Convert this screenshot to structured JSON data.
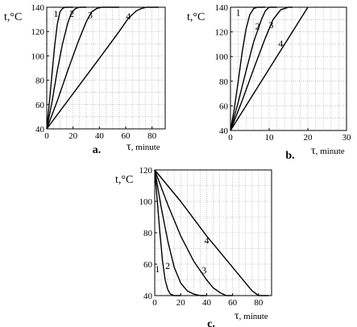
{
  "figure": {
    "panels": [
      {
        "id": "a",
        "caption": "a.",
        "chart_data": {
          "type": "line",
          "title": "",
          "ylabel_symbol": "t,",
          "ylabel_unit": "°C",
          "xlabel_symbol": "τ",
          "xlabel_unit": ", minute",
          "xlim": [
            0,
            90
          ],
          "ylim": [
            40,
            140
          ],
          "xticks": [
            0,
            20,
            40,
            60,
            80
          ],
          "yticks": [
            40,
            60,
            80,
            100,
            120,
            140
          ],
          "grid": true,
          "series": [
            {
              "name": "1",
              "label_at": [
                7,
                132
              ],
              "points": [
                [
                  0,
                  40
                ],
                [
                  2,
                  62
                ],
                [
                  4,
                  85
                ],
                [
                  6,
                  108
                ],
                [
                  8,
                  126
                ],
                [
                  10,
                  136
                ],
                [
                  12,
                  139
                ],
                [
                  14,
                  140
                ],
                [
                  20,
                  140
                ]
              ]
            },
            {
              "name": "2",
              "label_at": [
                19,
                132
              ],
              "points": [
                [
                  0,
                  40
                ],
                [
                  4,
                  62
                ],
                [
                  8,
                  88
                ],
                [
                  12,
                  110
                ],
                [
                  16,
                  127
                ],
                [
                  19,
                  136
                ],
                [
                  22,
                  139
                ],
                [
                  25,
                  140
                ],
                [
                  30,
                  140
                ]
              ]
            },
            {
              "name": "3",
              "label_at": [
                33,
                131
              ],
              "points": [
                [
                  0,
                  40
                ],
                [
                  8,
                  63
                ],
                [
                  16,
                  88
                ],
                [
                  24,
                  112
                ],
                [
                  30,
                  128
                ],
                [
                  34,
                  136
                ],
                [
                  38,
                  139
                ],
                [
                  42,
                  140
                ],
                [
                  55,
                  140
                ]
              ]
            },
            {
              "name": "4",
              "label_at": [
                62,
                130
              ],
              "points": [
                [
                  0,
                  40
                ],
                [
                  20,
                  69
                ],
                [
                  40,
                  98
                ],
                [
                  55,
                  120
                ],
                [
                  62,
                  131
                ],
                [
                  68,
                  137
                ],
                [
                  72,
                  139
                ],
                [
                  76,
                  140
                ],
                [
                  85,
                  140
                ]
              ]
            }
          ]
        }
      },
      {
        "id": "b",
        "caption": "b.",
        "chart_data": {
          "type": "line",
          "title": "",
          "ylabel_symbol": "t,",
          "ylabel_unit": "°C",
          "xlabel_symbol": "τ",
          "xlabel_unit": ", minute",
          "xlim": [
            0,
            30
          ],
          "ylim": [
            40,
            140
          ],
          "xticks": [
            0,
            10,
            20,
            30
          ],
          "yticks": [
            40,
            60,
            80,
            100,
            120,
            140
          ],
          "grid": true,
          "series": [
            {
              "name": "1",
              "label_at": [
                2,
                133
              ],
              "points": [
                [
                  0,
                  40
                ],
                [
                  1,
                  58
                ],
                [
                  2,
                  80
                ],
                [
                  3,
                  103
                ],
                [
                  4,
                  122
                ],
                [
                  5,
                  134
                ],
                [
                  6,
                  139
                ],
                [
                  7,
                  140
                ],
                [
                  9,
                  140
                ]
              ]
            },
            {
              "name": "2",
              "label_at": [
                7,
                122
              ],
              "points": [
                [
                  0,
                  40
                ],
                [
                  2,
                  63
                ],
                [
                  4,
                  88
                ],
                [
                  6,
                  112
                ],
                [
                  8,
                  130
                ],
                [
                  9,
                  137
                ],
                [
                  10,
                  140
                ],
                [
                  12,
                  140
                ]
              ]
            },
            {
              "name": "3",
              "label_at": [
                10.5,
                123
              ],
              "points": [
                [
                  0,
                  40
                ],
                [
                  3,
                  64
                ],
                [
                  6,
                  90
                ],
                [
                  9,
                  115
                ],
                [
                  11,
                  130
                ],
                [
                  13,
                  138
                ],
                [
                  15,
                  140
                ],
                [
                  16,
                  140
                ]
              ]
            },
            {
              "name": "4",
              "label_at": [
                13,
                108
              ],
              "points": [
                [
                  0,
                  40
                ],
                [
                  5,
                  65
                ],
                [
                  10,
                  90
                ],
                [
                  15,
                  115
                ],
                [
                  20,
                  140
                ]
              ]
            }
          ]
        }
      },
      {
        "id": "c",
        "caption": "c.",
        "chart_data": {
          "type": "line",
          "title": "",
          "ylabel_symbol": "t,",
          "ylabel_unit": "°C",
          "xlabel_symbol": "τ",
          "xlabel_unit": ", minute",
          "xlim": [
            0,
            90
          ],
          "ylim": [
            40,
            120
          ],
          "xticks": [
            0,
            20,
            40,
            60,
            80
          ],
          "yticks": [
            40,
            60,
            80,
            100,
            120
          ],
          "grid": true,
          "series": [
            {
              "name": "1",
              "label_at": [
                2,
                55
              ],
              "points": [
                [
                  0,
                  120
                ],
                [
                  2,
                  100
                ],
                [
                  4,
                  80
                ],
                [
                  6,
                  62
                ],
                [
                  8,
                  50
                ],
                [
                  10,
                  44
                ],
                [
                  12,
                  41
                ],
                [
                  15,
                  40
                ],
                [
                  20,
                  40
                ]
              ]
            },
            {
              "name": "2",
              "label_at": [
                10,
                57
              ],
              "points": [
                [
                  0,
                  120
                ],
                [
                  5,
                  96
                ],
                [
                  10,
                  75
                ],
                [
                  15,
                  58
                ],
                [
                  20,
                  48
                ],
                [
                  25,
                  43
                ],
                [
                  30,
                  41
                ],
                [
                  35,
                  40
                ],
                [
                  40,
                  40
                ]
              ]
            },
            {
              "name": "3",
              "label_at": [
                38,
                54
              ],
              "points": [
                [
                  0,
                  120
                ],
                [
                  10,
                  98
                ],
                [
                  20,
                  78
                ],
                [
                  30,
                  62
                ],
                [
                  40,
                  50
                ],
                [
                  45,
                  45
                ],
                [
                  50,
                  42
                ],
                [
                  55,
                  40
                ],
                [
                  60,
                  40
                ]
              ]
            },
            {
              "name": "4",
              "label_at": [
                40,
                73
              ],
              "points": [
                [
                  0,
                  120
                ],
                [
                  20,
                  100
                ],
                [
                  40,
                  78
                ],
                [
                  60,
                  58
                ],
                [
                  70,
                  48
                ],
                [
                  75,
                  43
                ],
                [
                  80,
                  40
                ],
                [
                  88,
                  40
                ]
              ]
            }
          ]
        }
      }
    ]
  }
}
